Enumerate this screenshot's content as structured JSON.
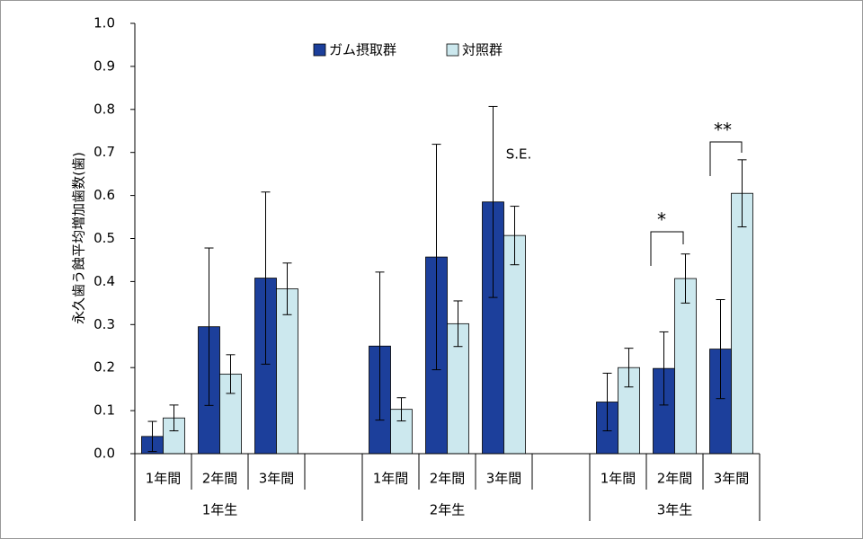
{
  "chart_data": {
    "type": "bar",
    "y_label": "永久歯う蝕平均増加歯数(歯)",
    "groups": [
      {
        "name": "1年生",
        "categories": [
          "1年間",
          "2年間",
          "3年間"
        ]
      },
      {
        "name": "2年生",
        "categories": [
          "1年間",
          "2年間",
          "3年間"
        ]
      },
      {
        "name": "3年生",
        "categories": [
          "1年間",
          "2年間",
          "3年間"
        ]
      }
    ],
    "series": [
      {
        "name": "ガム摂取群",
        "color": "#1c3f9b",
        "values": [
          0.04,
          0.295,
          0.408,
          0.25,
          0.457,
          0.585,
          0.12,
          0.198,
          0.243
        ],
        "errors": [
          0.035,
          0.183,
          0.2,
          0.172,
          0.262,
          0.222,
          0.067,
          0.085,
          0.115
        ]
      },
      {
        "name": "対照群",
        "color": "#cce8ee",
        "values": [
          0.083,
          0.185,
          0.383,
          0.103,
          0.302,
          0.507,
          0.2,
          0.407,
          0.605
        ],
        "errors": [
          0.03,
          0.045,
          0.06,
          0.027,
          0.053,
          0.068,
          0.045,
          0.057,
          0.078
        ]
      }
    ],
    "ylim": [
      0,
      1
    ],
    "yticks": [
      {
        "value": 0,
        "label": "0.0"
      },
      0.1,
      0.2,
      0.3,
      0.4,
      0.5,
      0.6,
      0.7,
      0.8,
      0.9,
      {
        "value": 1,
        "label": "1.0"
      }
    ],
    "annotations": [
      "S.E.",
      "*",
      "**"
    ]
  }
}
